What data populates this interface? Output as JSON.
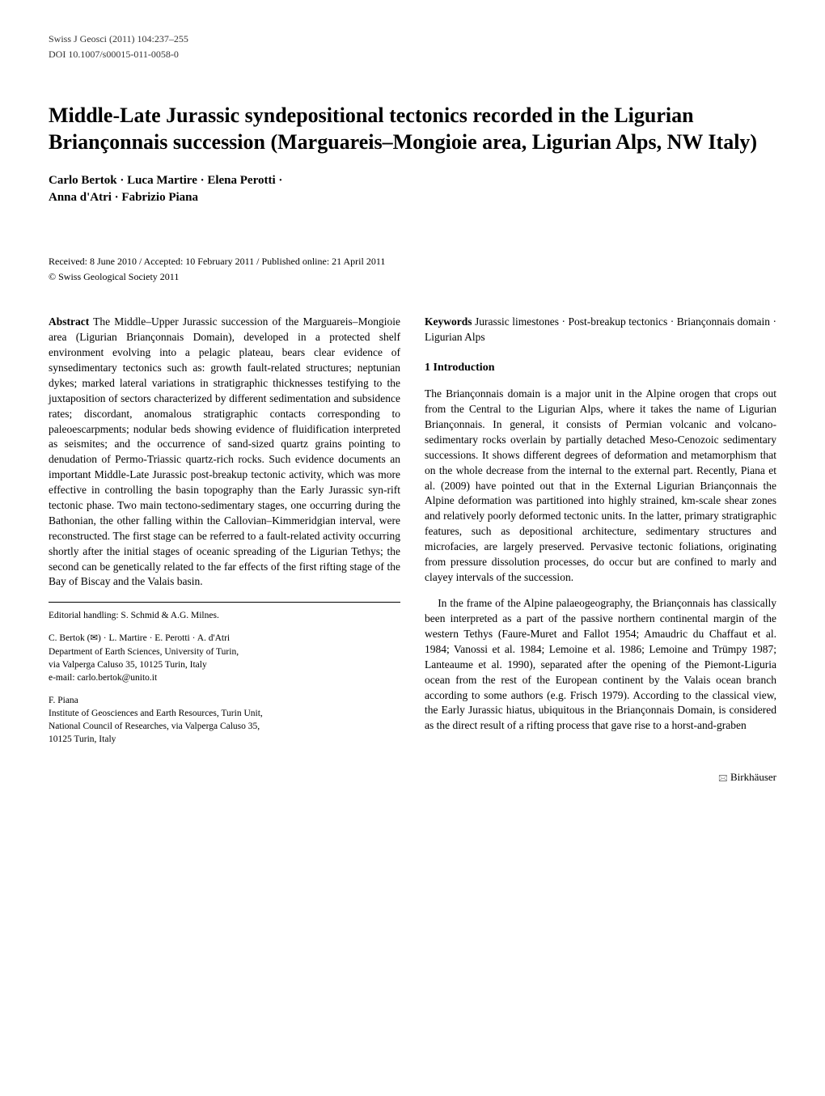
{
  "header": {
    "journal": "Swiss J Geosci (2011) 104:237–255",
    "doi": "DOI 10.1007/s00015-011-0058-0"
  },
  "title": "Middle-Late Jurassic syndepositional tectonics recorded in the Ligurian Briançonnais succession (Marguareis–Mongioie area, Ligurian Alps, NW Italy)",
  "authors": {
    "line1": "Carlo Bertok · Luca Martire · Elena Perotti ·",
    "line2": "Anna d'Atri · Fabrizio Piana"
  },
  "dates": "Received: 8 June 2010 / Accepted: 10 February 2011 / Published online: 21 April 2011",
  "copyright": "© Swiss Geological Society 2011",
  "abstract": {
    "label": "Abstract",
    "text": "  The Middle–Upper Jurassic succession of the Marguareis–Mongioie area (Ligurian Briançonnais Domain), developed in a protected shelf environment evolving into a pelagic plateau, bears clear evidence of synsedimentary tectonics such as: growth fault-related structures; neptunian dykes; marked lateral variations in stratigraphic thicknesses testifying to the juxtaposition of sectors characterized by different sedimentation and subsidence rates; discordant, anomalous stratigraphic contacts corresponding to paleoescarpments; nodular beds showing evidence of fluidification interpreted as seismites; and the occurrence of sand-sized quartz grains pointing to denudation of Permo-Triassic quartz-rich rocks. Such evidence documents an important Middle-Late Jurassic post-breakup tectonic activity, which was more effective in controlling the basin topography than the Early Jurassic syn-rift tectonic phase. Two main tectono-sedimentary stages, one occurring during the Bathonian, the other falling within the Callovian–Kimmeridgian interval, were reconstructed. The first stage can be referred to a fault-related activity occurring shortly after the initial stages of oceanic spreading of the Ligurian Tethys; the second can be genetically related to the far effects of the first rifting stage of the Bay of Biscay and the Valais basin."
  },
  "keywords": {
    "label": "Keywords",
    "text": "  Jurassic limestones · Post-breakup tectonics · Briançonnais domain · Ligurian Alps"
  },
  "section1": {
    "heading": "1 Introduction",
    "p1": "The Briançonnais domain is a major unit in the Alpine orogen that crops out from the Central to the Ligurian Alps, where it takes the name of Ligurian Briançonnais. In general, it consists of Permian volcanic and volcano-sedimentary rocks overlain by partially detached Meso-Cenozoic sedimentary successions. It shows different degrees of deformation and metamorphism that on the whole decrease from the internal to the external part. Recently, Piana et al. (2009) have pointed out that in the External Ligurian Briançonnais the Alpine deformation was partitioned into highly strained, km-scale shear zones and relatively poorly deformed tectonic units. In the latter, primary stratigraphic features, such as depositional architecture, sedimentary structures and microfacies, are largely preserved. Pervasive tectonic foliations, originating from pressure dissolution processes, do occur but are confined to marly and clayey intervals of the succession.",
    "p2": "In the frame of the Alpine palaeogeography, the Briançonnais has classically been interpreted as a part of the passive northern continental margin of the western Tethys (Faure-Muret and Fallot 1954; Amaudric du Chaffaut et al. 1984; Vanossi et al. 1984; Lemoine et al. 1986; Lemoine and Trümpy 1987; Lanteaume et al. 1990), separated after the opening of the Piemont-Liguria ocean from the rest of the European continent by the Valais ocean branch according to some authors (e.g. Frisch 1979). According to the classical view, the Early Jurassic hiatus, ubiquitous in the Briançonnais Domain, is considered as the direct result of a rifting process that gave rise to a horst-and-graben"
  },
  "editorial": "Editorial handling: S. Schmid & A.G. Milnes.",
  "affil1": {
    "names": "C. Bertok (✉) · L. Martire · E. Perotti · A. d'Atri",
    "dept": "Department of Earth Sciences, University of Turin,",
    "addr": "via Valperga Caluso 35, 10125 Turin, Italy",
    "email": "e-mail: carlo.bertok@unito.it"
  },
  "affil2": {
    "names": "F. Piana",
    "dept": "Institute of Geosciences and Earth Resources, Turin Unit,",
    "addr": "National Council of Researches, via Valperga Caluso 35,",
    "city": "10125 Turin, Italy"
  },
  "publisher": "Birkhäuser",
  "publisher_icon": "🖂"
}
